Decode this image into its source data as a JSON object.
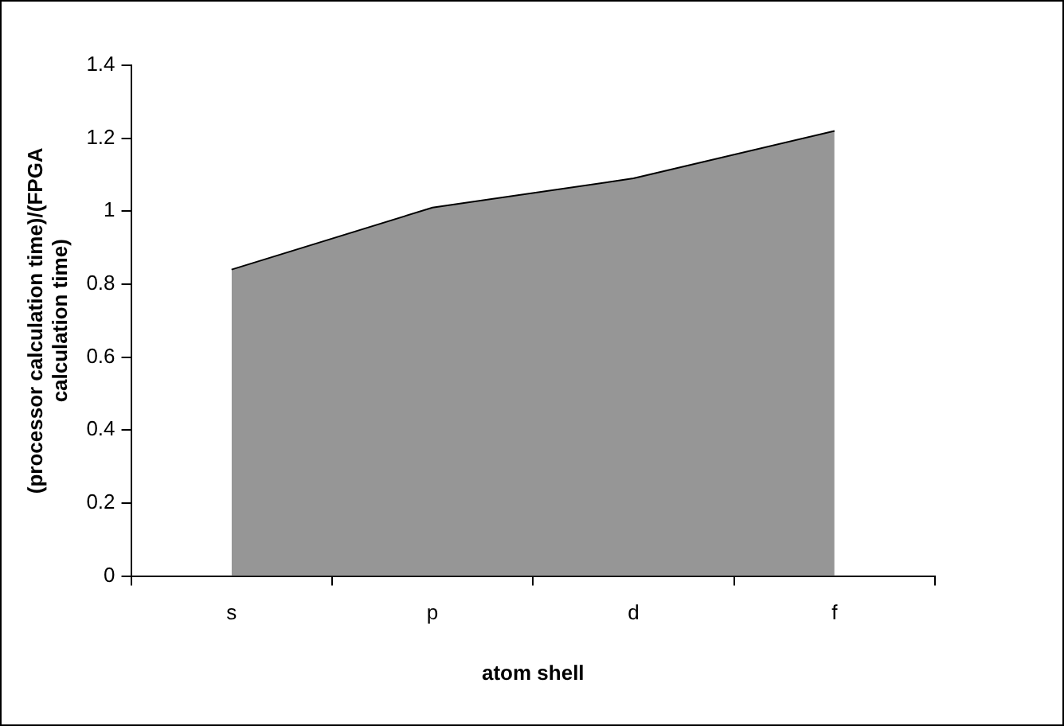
{
  "chart_data": {
    "type": "area",
    "xlabel": "atom shell",
    "ylabel": "(processor calculation time)/(FPGA calculation time)",
    "categories": [
      "s",
      "p",
      "d",
      "f"
    ],
    "series": [
      {
        "color": "#969696",
        "values": [
          0.84,
          1.01,
          1.09,
          1.22
        ]
      }
    ],
    "ylim": [
      0,
      1.4
    ],
    "yticks": [
      0,
      0.2,
      0.4,
      0.6,
      0.8,
      1,
      1.2,
      1.4
    ],
    "grid": false,
    "legend": false
  }
}
